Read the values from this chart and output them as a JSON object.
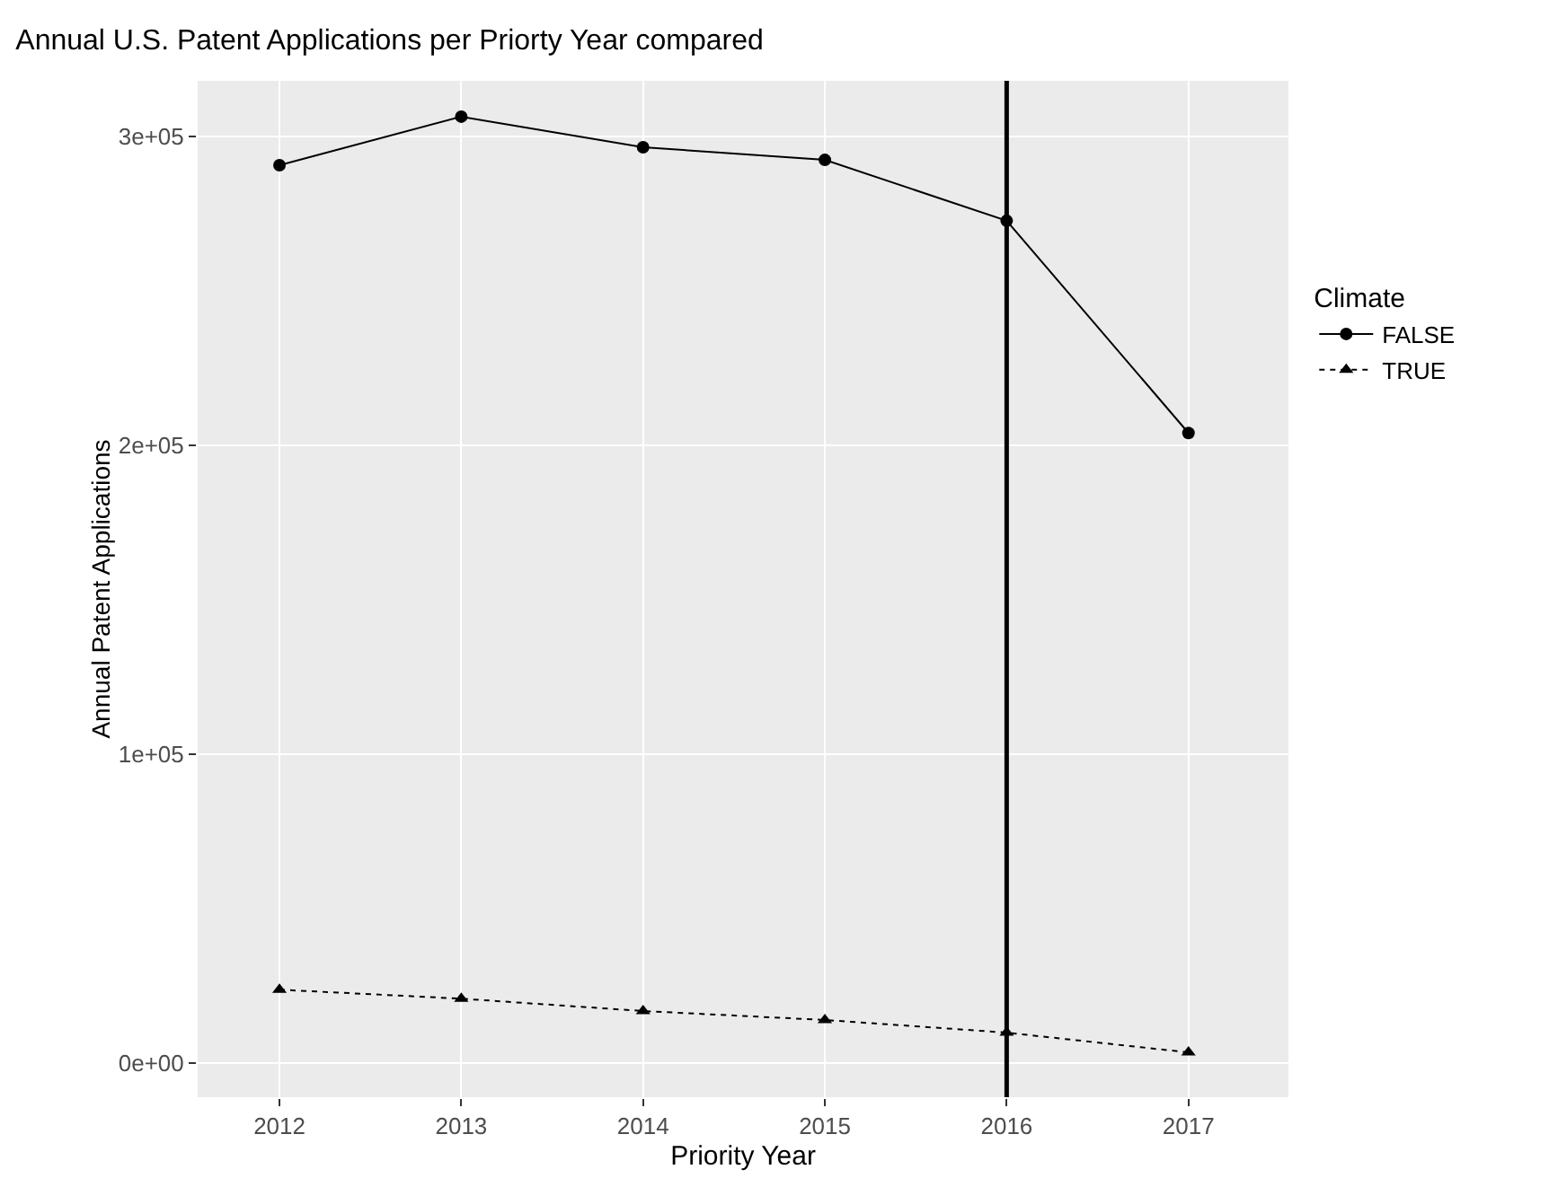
{
  "chart_data": {
    "type": "line",
    "title": "Annual U.S. Patent Applications per Priorty Year compared",
    "xlabel": "Priority Year",
    "ylabel": "Annual Patent Applications",
    "legend_title": "Climate",
    "x": [
      2012,
      2013,
      2014,
      2015,
      2016,
      2017
    ],
    "series": [
      {
        "name": "FALSE",
        "color": "#000000",
        "marker": "circle",
        "line_style": "solid",
        "values": [
          290700,
          306400,
          296500,
          292400,
          272700,
          204000
        ]
      },
      {
        "name": "TRUE",
        "color": "#000000",
        "marker": "triangle",
        "line_style": "dotted",
        "values": [
          23800,
          20900,
          16900,
          14000,
          9900,
          3500
        ]
      }
    ],
    "xlim": [
      2011.55,
      2017.55
    ],
    "xticks": [
      2012,
      2013,
      2014,
      2015,
      2016,
      2017
    ],
    "ylim": [
      -11000,
      318000
    ],
    "yticks": [
      {
        "value": 0,
        "label": "0e+00"
      },
      {
        "value": 100000,
        "label": "1e+05"
      },
      {
        "value": 200000,
        "label": "2e+05"
      },
      {
        "value": 300000,
        "label": "3e+05"
      }
    ],
    "ref_lines": [
      {
        "axis": "x",
        "value": 2016,
        "color": "#000000",
        "line_style": "solid"
      }
    ],
    "grid": true,
    "legend": "right"
  }
}
